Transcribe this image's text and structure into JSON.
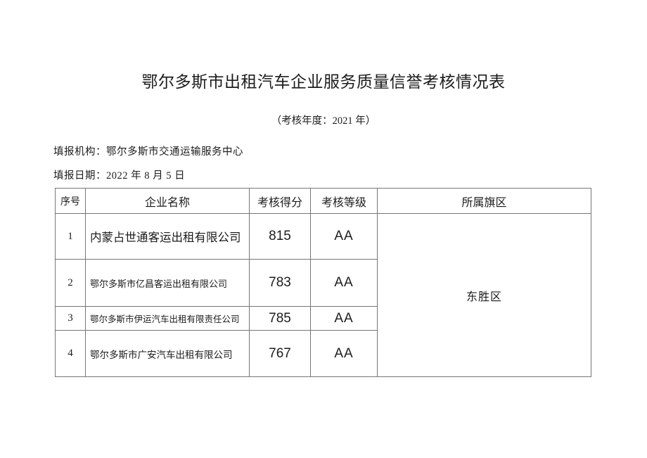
{
  "document": {
    "title": "鄂尔多斯市出租汽车企业服务质量信誉考核情况表",
    "subtitle": "（考核年度：2021 年）",
    "org_line": "填报机构：鄂尔多斯市交通运输服务中心",
    "date_line": "填报日期：2022 年 8 月 5 日"
  },
  "table": {
    "headers": [
      "序号",
      "企业名称",
      "考核得分",
      "考核等级",
      "所属旗区"
    ],
    "rows": [
      {
        "no": "1",
        "name": "内蒙占世通客运出租有限公司",
        "score": "815",
        "grade": "AA"
      },
      {
        "no": "2",
        "name": "鄂尔多斯市亿昌客运出租有限公司",
        "score": "783",
        "grade": "AA"
      },
      {
        "no": "3",
        "name": "鄂尔多斯市伊运汽车出租有限责任公司",
        "score": "785",
        "grade": "AA"
      },
      {
        "no": "4",
        "name": "鄂尔多斯市广安汽车出租有限公司",
        "score": "767",
        "grade": "AA"
      }
    ],
    "district": "东胜区"
  },
  "colors": {
    "background": "#ffffff",
    "text": "#1c1c1c",
    "border": "#767676"
  }
}
